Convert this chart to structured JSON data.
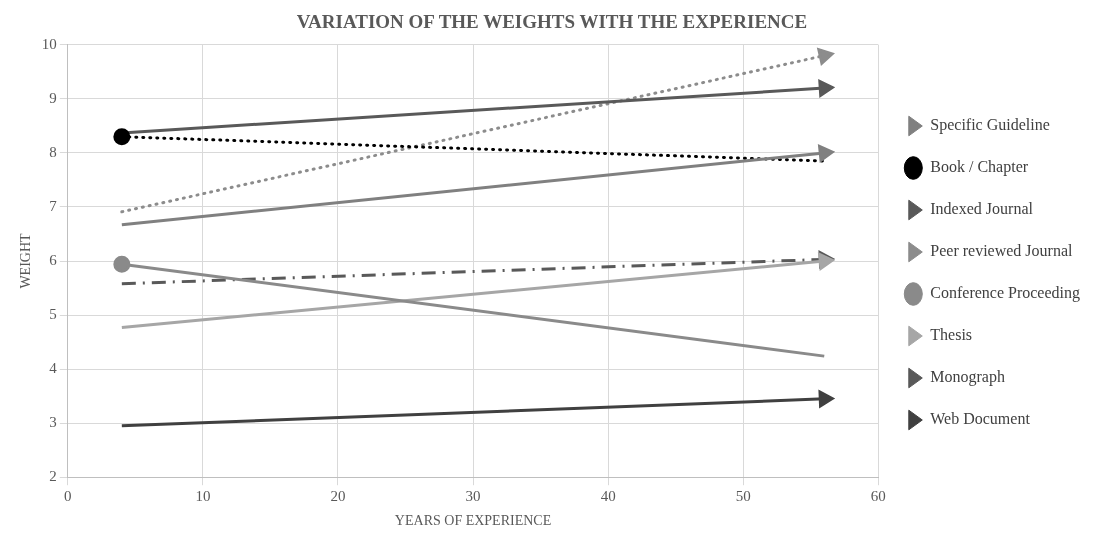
{
  "chart_data": {
    "type": "line",
    "title": "VARIATION OF THE WEIGHTS WITH THE EXPERIENCE",
    "xlabel": "YEARS OF EXPERIENCE",
    "ylabel": "WEIGHT",
    "x": [
      4,
      56
    ],
    "xlim": [
      0,
      60
    ],
    "xticks": [
      0,
      10,
      20,
      30,
      40,
      50,
      60
    ],
    "ylim": [
      2,
      10
    ],
    "yticks": [
      2,
      3,
      4,
      5,
      6,
      7,
      8,
      9,
      10
    ],
    "grid": true,
    "legend": "right",
    "series": [
      {
        "name": "Specific Guideline",
        "color": "#808080",
        "values": [
          6.67,
          8.0
        ],
        "line_style": "solid",
        "marker": "triangle"
      },
      {
        "name": "Book / Chapter",
        "color": "#000000",
        "values": [
          8.3,
          7.85
        ],
        "line_style": "dotted",
        "marker": "circle"
      },
      {
        "name": "Indexed Journal",
        "color": "#595959",
        "values": [
          8.37,
          9.2
        ],
        "line_style": "solid",
        "marker": "triangle"
      },
      {
        "name": "Peer reviewed Journal",
        "color": "#8c8c8c",
        "values": [
          6.91,
          9.8
        ],
        "line_style": "dotted",
        "marker": "triangle"
      },
      {
        "name": "Conference Proceeding",
        "color": "#8a8a8a",
        "values": [
          5.94,
          4.24
        ],
        "line_style": "solid",
        "marker": "circle"
      },
      {
        "name": "Thesis",
        "color": "#a6a6a6",
        "values": [
          4.77,
          6.0
        ],
        "line_style": "solid",
        "marker": "triangle"
      },
      {
        "name": "Monograph",
        "color": "#595959",
        "values": [
          5.58,
          6.03
        ],
        "line_style": "dashdot",
        "marker": "triangle"
      },
      {
        "name": "Web Document",
        "color": "#404040",
        "values": [
          2.95,
          3.45
        ],
        "line_style": "solid",
        "marker": "triangle"
      }
    ]
  }
}
